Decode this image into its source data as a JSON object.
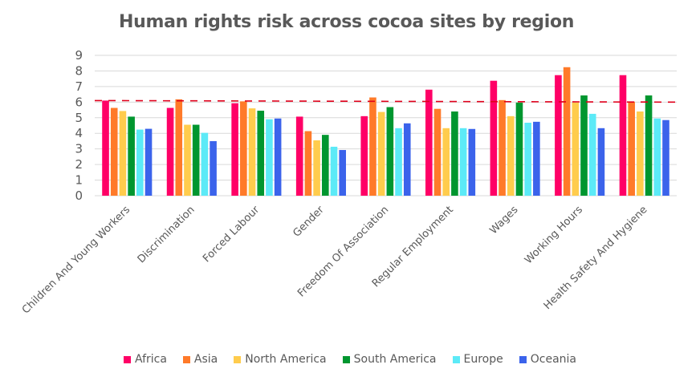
{
  "chart_data": {
    "type": "bar",
    "title": "Human rights risk across cocoa sites by region",
    "xlabel": "",
    "ylabel": "",
    "ylim": [
      0,
      9
    ],
    "yticks": [
      0,
      1,
      2,
      3,
      4,
      5,
      6,
      7,
      8,
      9
    ],
    "grid": true,
    "legend_position": "bottom",
    "categories": [
      "Children And Young Workers",
      "Discrimination",
      "Forced Labour",
      "Gender",
      "Freedom Of Association",
      "Regular Employment",
      "Wages",
      "Working Hours",
      "Health Safety And Hygiene"
    ],
    "series": [
      {
        "name": "Africa",
        "color": "#ff0066",
        "values": [
          6.1,
          5.63,
          5.93,
          5.07,
          5.1,
          6.8,
          7.37,
          7.73,
          7.73
        ]
      },
      {
        "name": "Asia",
        "color": "#ff7a29",
        "values": [
          5.63,
          6.18,
          6.05,
          4.14,
          6.3,
          5.57,
          6.13,
          8.24,
          6.03
        ]
      },
      {
        "name": "North America",
        "color": "#ffcc4d",
        "values": [
          5.43,
          4.55,
          5.6,
          3.55,
          5.37,
          4.33,
          5.1,
          5.97,
          5.4
        ]
      },
      {
        "name": "South America",
        "color": "#00962f",
        "values": [
          5.07,
          4.55,
          5.45,
          3.9,
          5.68,
          5.4,
          5.97,
          6.43,
          6.43
        ]
      },
      {
        "name": "Europe",
        "color": "#5ceaf7",
        "values": [
          4.24,
          4.03,
          4.9,
          3.14,
          4.33,
          4.33,
          4.68,
          5.25,
          4.95
        ]
      },
      {
        "name": "Oceania",
        "color": "#3b63eb",
        "values": [
          4.29,
          3.5,
          4.95,
          2.93,
          4.64,
          4.28,
          4.74,
          4.33,
          4.85
        ]
      }
    ],
    "reference_line": {
      "style": "dashed",
      "color": "#e0001b",
      "y_start": 6.1,
      "y_end": 6.0
    }
  }
}
